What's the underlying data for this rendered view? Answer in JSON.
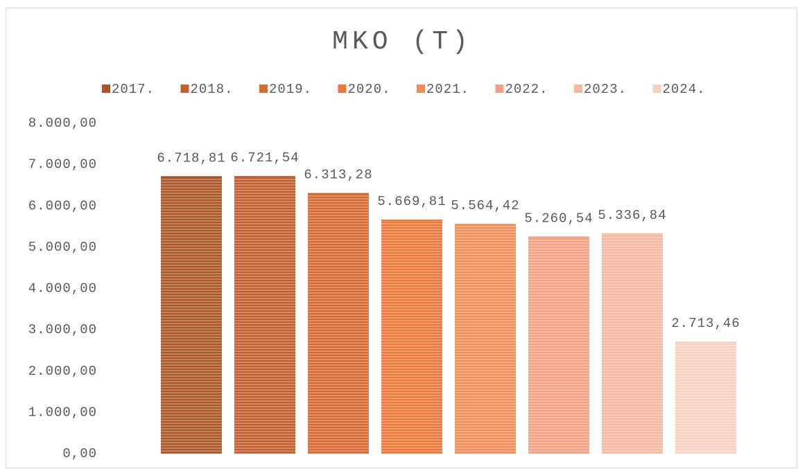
{
  "chart_data": {
    "type": "bar",
    "title": "MKO (T)",
    "categories": [
      null
    ],
    "series": [
      {
        "name": "2017.",
        "color": "#a9552b",
        "values": [
          6718.81
        ],
        "value_labels": [
          "6.718,81"
        ]
      },
      {
        "name": "2018.",
        "color": "#c05f30",
        "values": [
          6721.54
        ],
        "value_labels": [
          "6.721,54"
        ]
      },
      {
        "name": "2019.",
        "color": "#d56934",
        "values": [
          6313.28
        ],
        "value_labels": [
          "6.313,28"
        ]
      },
      {
        "name": "2020.",
        "color": "#e8783c",
        "values": [
          5669.81
        ],
        "value_labels": [
          "5.669,81"
        ]
      },
      {
        "name": "2021.",
        "color": "#ee8c5a",
        "values": [
          5564.42
        ],
        "value_labels": [
          "5.564,42"
        ]
      },
      {
        "name": "2022.",
        "color": "#f0a382",
        "values": [
          5260.54
        ],
        "value_labels": [
          "5.260,54"
        ]
      },
      {
        "name": "2023.",
        "color": "#f3b9a0",
        "values": [
          5336.84
        ],
        "value_labels": [
          "5.336,84"
        ]
      },
      {
        "name": "2024.",
        "color": "#f7d2c2",
        "values": [
          2713.46
        ],
        "value_labels": [
          "2.713,46"
        ]
      }
    ],
    "ylim": [
      0,
      8000
    ],
    "yticks": [
      {
        "value": 0,
        "label": "0,00"
      },
      {
        "value": 1000,
        "label": "1.000,00"
      },
      {
        "value": 2000,
        "label": "2.000,00"
      },
      {
        "value": 3000,
        "label": "3.000,00"
      },
      {
        "value": 4000,
        "label": "4.000,00"
      },
      {
        "value": 5000,
        "label": "5.000,00"
      },
      {
        "value": 6000,
        "label": "6.000,00"
      },
      {
        "value": 7000,
        "label": "7.000,00"
      },
      {
        "value": 8000,
        "label": "8.000,00"
      }
    ],
    "grid": false,
    "legend": "top"
  }
}
